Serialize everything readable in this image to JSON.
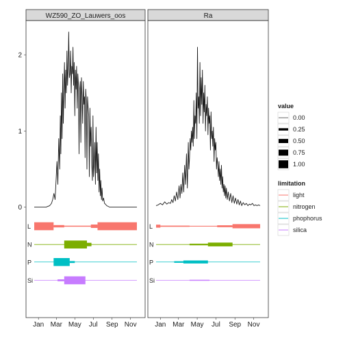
{
  "chart_data": {
    "type": "line",
    "facets": [
      "WZ590_ZO_Lauwers_oos",
      "Ra"
    ],
    "x_ticks": [
      "Jan",
      "Mar",
      "May",
      "Jul",
      "Sep",
      "Nov"
    ],
    "x_tick_positions": [
      15,
      74,
      135,
      196,
      258,
      319
    ],
    "xlim": [
      1,
      340
    ],
    "y_ticks": [
      "0",
      "1",
      "2"
    ],
    "y_tick_values": [
      0,
      1,
      2
    ],
    "ylim": [
      -1.45,
      2.45
    ],
    "series": [
      {
        "facet": "WZ590_ZO_Lauwers_oos",
        "x": [
          1,
          40,
          52,
          58,
          62,
          66,
          70,
          73,
          76,
          79,
          82,
          85,
          87,
          89,
          91,
          93,
          95,
          97,
          99,
          101,
          103,
          105,
          107,
          109,
          111,
          113,
          115,
          117,
          119,
          121,
          123,
          125,
          127,
          129,
          131,
          133,
          135,
          137,
          139,
          141,
          143,
          145,
          147,
          149,
          151,
          153,
          155,
          157,
          159,
          161,
          163,
          165,
          167,
          169,
          171,
          173,
          175,
          177,
          179,
          181,
          183,
          185,
          187,
          189,
          191,
          193,
          195,
          197,
          199,
          201,
          203,
          205,
          207,
          209,
          211,
          213,
          215,
          217,
          219,
          221,
          223,
          225,
          227,
          230,
          233,
          236,
          240,
          245,
          250,
          258,
          265,
          340
        ],
        "values": [
          0,
          0,
          0.02,
          0.05,
          0.1,
          0.18,
          0.1,
          0.35,
          0.6,
          0.3,
          0.9,
          0.5,
          1.2,
          0.7,
          1.5,
          0.9,
          1.75,
          1.1,
          1.6,
          1.9,
          1.3,
          1.8,
          1.5,
          2.05,
          1.6,
          1.85,
          2.3,
          1.7,
          1.75,
          2.05,
          1.5,
          1.85,
          1.75,
          2.1,
          1.6,
          1.9,
          1.2,
          1.8,
          1.55,
          1.85,
          1.3,
          1.75,
          1.6,
          0.7,
          1.55,
          1.65,
          0.85,
          1.7,
          1.45,
          1.1,
          1.65,
          1.35,
          1.45,
          0.65,
          1.55,
          1.4,
          0.5,
          1.45,
          1.3,
          1.2,
          0.4,
          1.3,
          0.8,
          1.05,
          0.55,
          0.35,
          1.2,
          0.4,
          0.55,
          0.85,
          0.3,
          1.05,
          0.45,
          0.85,
          0.35,
          0.7,
          0.2,
          0.5,
          0.15,
          0.35,
          0.1,
          0.25,
          0.08,
          0.12,
          0.05,
          0.04,
          0.02,
          0.01,
          0,
          0,
          0,
          0
        ]
      },
      {
        "facet": "Ra",
        "x": [
          1,
          8,
          15,
          22,
          29,
          36,
          42,
          48,
          52,
          56,
          60,
          64,
          68,
          72,
          76,
          79,
          82,
          85,
          88,
          91,
          94,
          97,
          100,
          103,
          106,
          108,
          110,
          112,
          114,
          116,
          118,
          120,
          122,
          124,
          126,
          128,
          130,
          132,
          134,
          136,
          138,
          140,
          142,
          144,
          146,
          148,
          150,
          152,
          154,
          156,
          158,
          160,
          162,
          164,
          166,
          168,
          170,
          172,
          174,
          176,
          178,
          180,
          182,
          184,
          186,
          188,
          190,
          192,
          194,
          196,
          198,
          200,
          202,
          204,
          206,
          208,
          210,
          212,
          214,
          216,
          218,
          220,
          222,
          224,
          226,
          228,
          230,
          233,
          236,
          240,
          244,
          248,
          252,
          256,
          260,
          264,
          268,
          272,
          276,
          280,
          285,
          290,
          295,
          300,
          305,
          310,
          315,
          320,
          325,
          330,
          335,
          340
        ],
        "values": [
          0.02,
          0.03,
          0.05,
          0.03,
          0.07,
          0.04,
          0.06,
          0.05,
          0.1,
          0.06,
          0.15,
          0.08,
          0.2,
          0.1,
          0.28,
          0.12,
          0.3,
          0.18,
          0.45,
          0.2,
          0.55,
          0.3,
          0.7,
          0.25,
          0.85,
          0.5,
          0.65,
          0.9,
          0.75,
          1.0,
          0.85,
          1.05,
          0.8,
          1.4,
          0.9,
          1.2,
          1.1,
          1.5,
          0.9,
          2.1,
          1.3,
          1.45,
          1.1,
          1.9,
          1.2,
          1.7,
          1.35,
          1.8,
          1.1,
          1.5,
          1.25,
          1.6,
          1.0,
          1.35,
          1.2,
          1.45,
          0.95,
          1.3,
          1.1,
          1.2,
          0.75,
          1.25,
          0.9,
          1.0,
          0.8,
          1.05,
          0.6,
          0.9,
          0.75,
          0.85,
          0.5,
          0.65,
          0.55,
          0.4,
          0.6,
          0.35,
          0.5,
          0.3,
          0.55,
          0.25,
          0.4,
          0.2,
          0.3,
          0.15,
          0.28,
          0.12,
          0.25,
          0.1,
          0.2,
          0.08,
          0.18,
          0.06,
          0.15,
          0.05,
          0.12,
          0.04,
          0.1,
          0.03,
          0.08,
          0.02,
          0.06,
          0.03,
          0.05,
          0.02,
          0.04,
          0.03,
          0.05,
          0.02,
          0.03,
          0.02,
          0.03,
          0.02
        ]
      }
    ],
    "limitation_rows": [
      {
        "label": "L",
        "name": "light",
        "y": -0.25,
        "color": "#F8766D"
      },
      {
        "label": "N",
        "name": "nitrogen",
        "y": -0.49,
        "color": "#7CAE00"
      },
      {
        "label": "P",
        "name": "phophorus",
        "y": -0.72,
        "color": "#00BFC4"
      },
      {
        "label": "Si",
        "name": "silica",
        "y": -0.96,
        "color": "#C77CFF"
      }
    ],
    "limitation_segments": [
      [
        {
          "row": 0,
          "x0": 1,
          "x1": 65,
          "value": 1.0
        },
        {
          "row": 0,
          "x0": 65,
          "x1": 100,
          "value": 0.25
        },
        {
          "row": 0,
          "x0": 100,
          "x1": 188,
          "value": 0.08
        },
        {
          "row": 0,
          "x0": 188,
          "x1": 210,
          "value": 0.4
        },
        {
          "row": 0,
          "x0": 210,
          "x1": 340,
          "value": 1.0
        },
        {
          "row": 1,
          "x0": 100,
          "x1": 175,
          "value": 1.0
        },
        {
          "row": 1,
          "x0": 175,
          "x1": 190,
          "value": 0.4
        },
        {
          "row": 2,
          "x0": 65,
          "x1": 118,
          "value": 1.0
        },
        {
          "row": 2,
          "x0": 118,
          "x1": 135,
          "value": 0.2
        },
        {
          "row": 3,
          "x0": 78,
          "x1": 100,
          "value": 0.2
        },
        {
          "row": 3,
          "x0": 100,
          "x1": 170,
          "value": 1.0
        }
      ],
      [
        {
          "row": 0,
          "x0": 1,
          "x1": 15,
          "value": 0.35
        },
        {
          "row": 0,
          "x0": 15,
          "x1": 110,
          "value": 0.1
        },
        {
          "row": 0,
          "x0": 110,
          "x1": 200,
          "value": 0.05
        },
        {
          "row": 0,
          "x0": 200,
          "x1": 250,
          "value": 0.2
        },
        {
          "row": 0,
          "x0": 250,
          "x1": 340,
          "value": 0.5
        },
        {
          "row": 1,
          "x0": 110,
          "x1": 170,
          "value": 0.15
        },
        {
          "row": 1,
          "x0": 170,
          "x1": 250,
          "value": 0.45
        },
        {
          "row": 2,
          "x0": 60,
          "x1": 90,
          "value": 0.15
        },
        {
          "row": 2,
          "x0": 90,
          "x1": 170,
          "value": 0.35
        },
        {
          "row": 3,
          "x0": 110,
          "x1": 175,
          "value": 0.08
        }
      ]
    ],
    "legend_value": {
      "title": "value",
      "entries": [
        "0.00",
        "0.25",
        "0.50",
        "0.75",
        "1.00"
      ],
      "levels": [
        0,
        0.25,
        0.5,
        0.75,
        1
      ]
    },
    "legend_limitation": {
      "title": "limitation",
      "entries": [
        "light",
        "nitrogen",
        "phophorus",
        "silica"
      ],
      "colors": [
        "#F8766D",
        "#7CAE00",
        "#00BFC4",
        "#C77CFF"
      ]
    },
    "line_color": "#1a1a1a",
    "grid": false,
    "legend_position": "right"
  }
}
